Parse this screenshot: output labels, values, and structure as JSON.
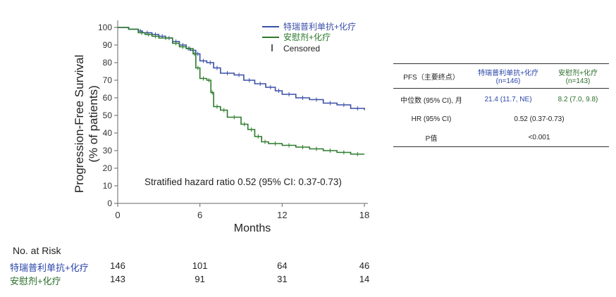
{
  "chart_data": {
    "type": "line",
    "ylabel": "Progression-Free Survival\n(% of patients)",
    "xlabel": "Months",
    "xlim": [
      0,
      18
    ],
    "ylim": [
      0,
      100
    ],
    "xticks": [
      0,
      6,
      12,
      18
    ],
    "yticks": [
      0,
      10,
      20,
      30,
      40,
      50,
      60,
      70,
      80,
      90,
      100
    ],
    "annotation": "Stratified hazard ratio 0.52 (95% CI: 0.37-0.73)",
    "legend_position": "top-right",
    "legend_censored": "Censored",
    "series": [
      {
        "name": "特瑞普利单抗+化疗",
        "color": "#3a4fa8",
        "x": [
          0,
          0.8,
          1.5,
          1.8,
          2.5,
          3,
          3.5,
          4,
          4.5,
          5,
          5.3,
          5.7,
          6,
          6.5,
          7,
          7.5,
          8.5,
          9.2,
          10,
          10.8,
          11.5,
          12,
          13,
          14,
          15,
          16,
          17,
          18
        ],
        "y": [
          100,
          99,
          98,
          97,
          96,
          95,
          94,
          92,
          90,
          88,
          87,
          85,
          81,
          80,
          77,
          74,
          73,
          70,
          68,
          66,
          64,
          62,
          60,
          59,
          57,
          56,
          54,
          53
        ]
      },
      {
        "name": "安慰剂+化疗",
        "color": "#2b7a2b",
        "x": [
          0,
          0.8,
          1.5,
          2,
          2.5,
          3,
          4,
          4.5,
          5,
          5.5,
          5.7,
          6,
          6.5,
          6.8,
          7,
          7.5,
          8,
          9,
          9.5,
          10,
          10.5,
          11,
          12,
          13,
          14,
          15,
          16,
          17,
          18
        ],
        "y": [
          100,
          99,
          97,
          96,
          95,
          94,
          91,
          89,
          88,
          85,
          77,
          71,
          70,
          63,
          55,
          53,
          49,
          45,
          42,
          38,
          35,
          34,
          33,
          32,
          31,
          30,
          29,
          28,
          28
        ]
      }
    ]
  },
  "risk_table": {
    "title": "No. at Risk",
    "timepoints": [
      0,
      6,
      12,
      18
    ],
    "rows": [
      {
        "label": "特瑞普利单抗+化疗",
        "color": "#2a44a8",
        "values": [
          "146",
          "101",
          "64",
          "46"
        ]
      },
      {
        "label": "安慰剂+化疗",
        "color": "#2a6d2a",
        "values": [
          "143",
          "91",
          "31",
          "14"
        ]
      }
    ]
  },
  "pfs_table": {
    "header": {
      "label": "PFS（主要终点）",
      "col_a": "特瑞普利单抗+化疗\n(n=146)",
      "col_b": "安慰剂+化疗\n(n=143)"
    },
    "median": {
      "label": "中位数 (95% CI), 月",
      "a": "21.4 (11.7, NE)",
      "b": "8.2 (7.0, 9.8)"
    },
    "hr": {
      "label": "HR (95% CI)",
      "value": "0.52 (0.37-0.73)"
    },
    "p": {
      "label": "P值",
      "value": "<0.001"
    }
  }
}
